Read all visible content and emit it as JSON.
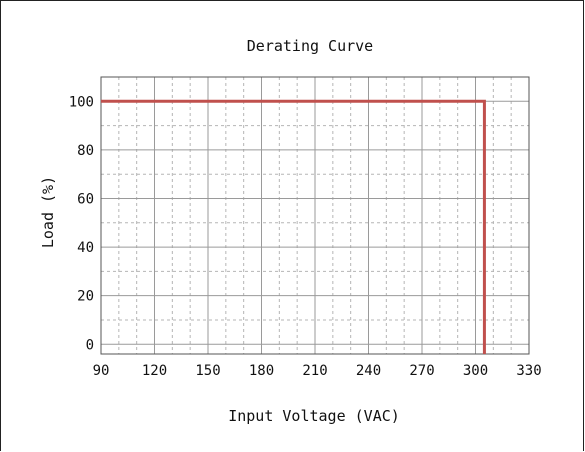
{
  "chart_data": {
    "type": "line",
    "title": "Derating Curve",
    "xlabel": "Input Voltage (VAC)",
    "ylabel": "Load (%)",
    "xlim": [
      90,
      330
    ],
    "ylim": [
      -4,
      110
    ],
    "x_ticks": [
      90,
      120,
      150,
      180,
      210,
      240,
      270,
      300,
      330
    ],
    "y_ticks": [
      0,
      20,
      40,
      60,
      80,
      100
    ],
    "grid": true,
    "grid_minor": true,
    "legend": "none",
    "series": [
      {
        "color": "#c0504d",
        "x": [
          90,
          305,
          305
        ],
        "y": [
          100,
          100,
          -4
        ]
      }
    ]
  }
}
